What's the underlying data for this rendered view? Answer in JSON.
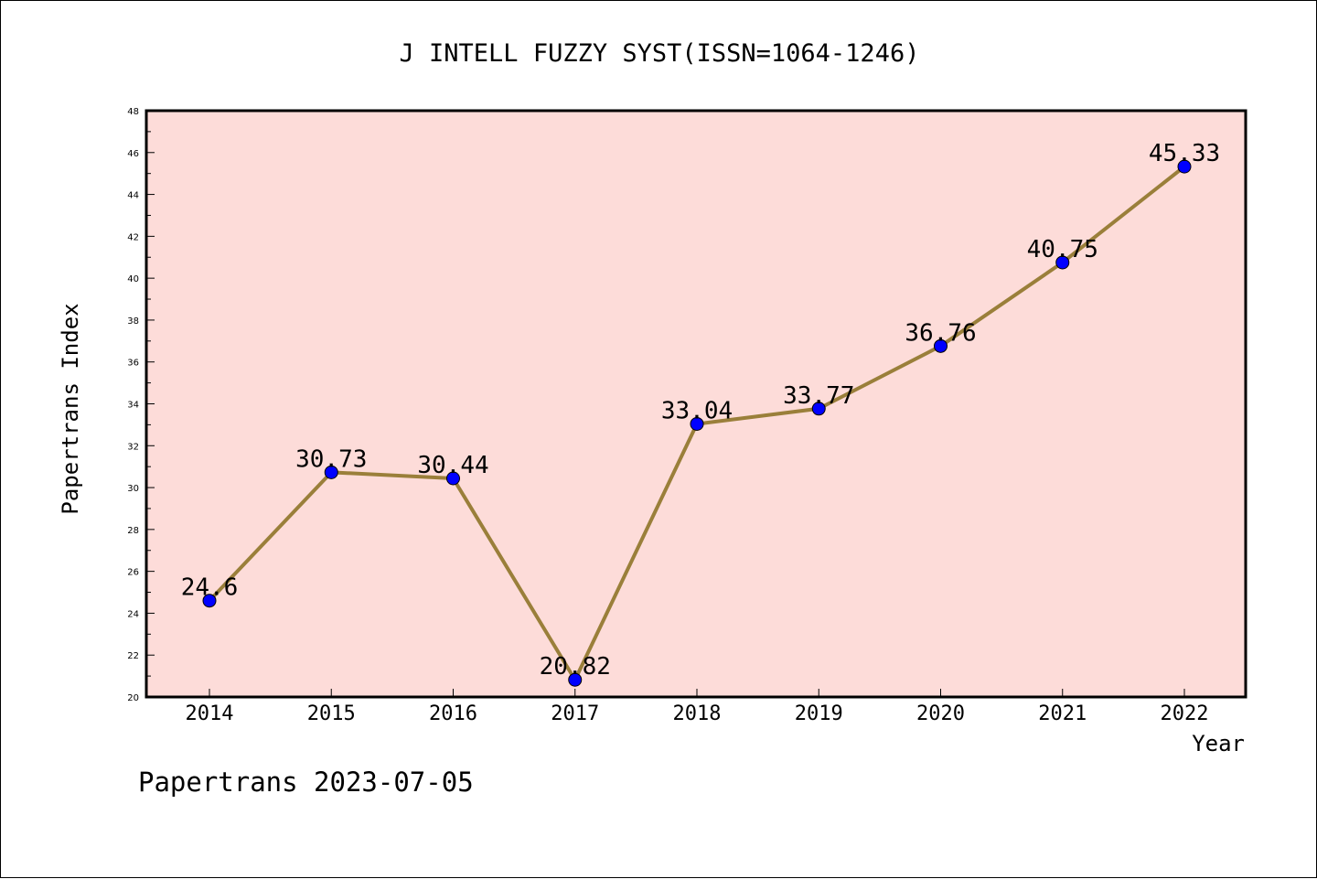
{
  "chart_data": {
    "type": "line",
    "title": "J INTELL FUZZY SYST(ISSN=1064-1246)",
    "xlabel": "Year",
    "ylabel": "Papertrans Index",
    "footer": "Papertrans 2023-07-05",
    "categories": [
      "2014",
      "2015",
      "2016",
      "2017",
      "2018",
      "2019",
      "2020",
      "2021",
      "2022"
    ],
    "series": [
      {
        "values": [
          24.6,
          30.73,
          30.44,
          20.82,
          33.04,
          33.77,
          36.76,
          40.75,
          45.33
        ],
        "labels": [
          "24.6",
          "30.73",
          "30.44",
          "20.82",
          "33.04",
          "33.77",
          "36.76",
          "40.75",
          "45.33"
        ]
      }
    ],
    "ylim": [
      20,
      48
    ],
    "yticks": [
      "20",
      "22",
      "24",
      "26",
      "28",
      "30",
      "32",
      "34",
      "36",
      "38",
      "40",
      "42",
      "44",
      "46",
      "48"
    ],
    "grid": false,
    "colors": {
      "plot_background": "#fddcd9",
      "line": "#9a7f3a",
      "marker": "#0000ff"
    }
  }
}
